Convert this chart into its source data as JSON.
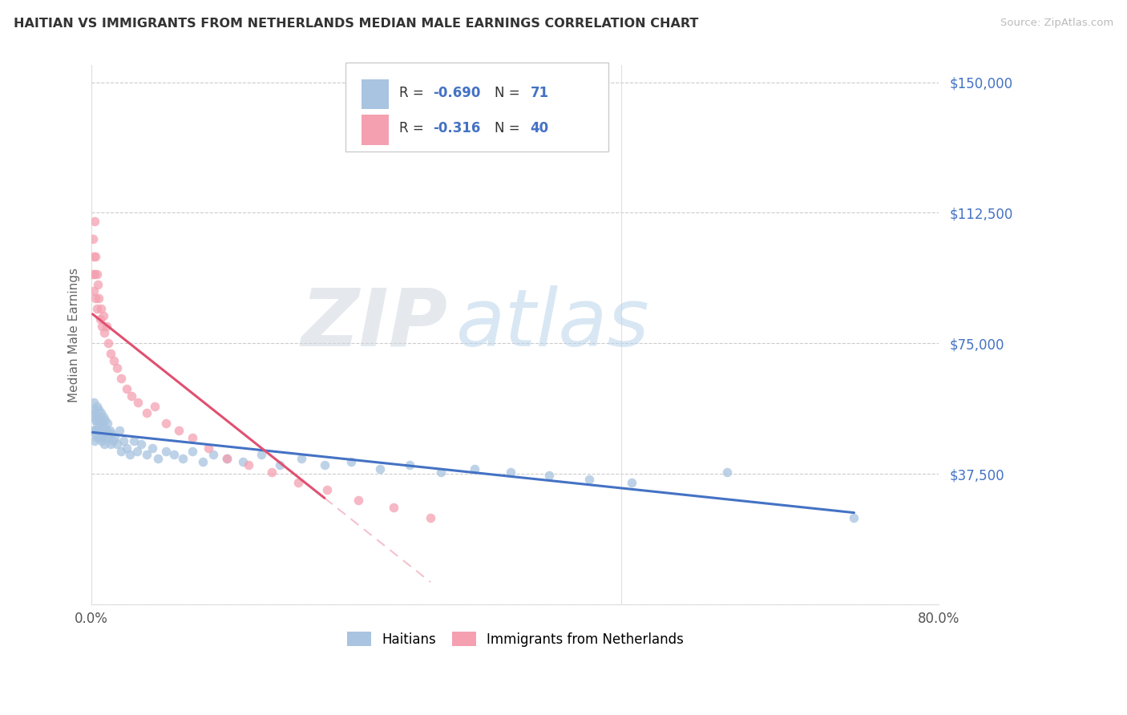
{
  "title": "HAITIAN VS IMMIGRANTS FROM NETHERLANDS MEDIAN MALE EARNINGS CORRELATION CHART",
  "source": "Source: ZipAtlas.com",
  "ylabel": "Median Male Earnings",
  "xlim": [
    0.0,
    0.8
  ],
  "ylim": [
    0,
    155000
  ],
  "yticks": [
    0,
    37500,
    75000,
    112500,
    150000
  ],
  "ytick_labels": [
    "",
    "$37,500",
    "$75,000",
    "$112,500",
    "$150,000"
  ],
  "xticks": [
    0.0,
    0.1,
    0.2,
    0.3,
    0.4,
    0.5,
    0.6,
    0.7,
    0.8
  ],
  "xtick_labels": [
    "0.0%",
    "",
    "",
    "",
    "",
    "",
    "",
    "",
    "80.0%"
  ],
  "legend_labels": [
    "Haitians",
    "Immigrants from Netherlands"
  ],
  "haiti_color": "#a8c4e0",
  "netherlands_color": "#f4a0b0",
  "haiti_R": -0.69,
  "haiti_N": 71,
  "netherlands_R": -0.316,
  "netherlands_N": 40,
  "haiti_line_color": "#4472c4",
  "netherlands_line_color": "#e05070",
  "watermark_zip": "ZIP",
  "watermark_atlas": "atlas",
  "background_color": "#ffffff",
  "grid_color": "#cccccc",
  "axis_color": "#4472c4",
  "haiti_scatter_x": [
    0.001,
    0.001,
    0.002,
    0.002,
    0.003,
    0.003,
    0.003,
    0.004,
    0.004,
    0.005,
    0.005,
    0.005,
    0.006,
    0.006,
    0.007,
    0.007,
    0.008,
    0.008,
    0.009,
    0.009,
    0.01,
    0.01,
    0.011,
    0.011,
    0.012,
    0.012,
    0.013,
    0.013,
    0.014,
    0.015,
    0.016,
    0.017,
    0.018,
    0.019,
    0.02,
    0.022,
    0.024,
    0.026,
    0.028,
    0.03,
    0.033,
    0.036,
    0.04,
    0.043,
    0.047,
    0.052,
    0.057,
    0.063,
    0.07,
    0.078,
    0.086,
    0.095,
    0.105,
    0.115,
    0.128,
    0.143,
    0.16,
    0.178,
    0.198,
    0.22,
    0.245,
    0.272,
    0.3,
    0.33,
    0.362,
    0.396,
    0.432,
    0.47,
    0.51,
    0.6,
    0.72
  ],
  "haiti_scatter_y": [
    56000,
    50000,
    58000,
    54000,
    55000,
    50000,
    47000,
    53000,
    49000,
    57000,
    52000,
    48000,
    54000,
    50000,
    56000,
    51000,
    53000,
    48000,
    55000,
    50000,
    52000,
    47000,
    54000,
    49000,
    51000,
    46000,
    53000,
    48000,
    50000,
    52000,
    48000,
    50000,
    46000,
    49000,
    47000,
    48000,
    46000,
    50000,
    44000,
    47000,
    45000,
    43000,
    47000,
    44000,
    46000,
    43000,
    45000,
    42000,
    44000,
    43000,
    42000,
    44000,
    41000,
    43000,
    42000,
    41000,
    43000,
    40000,
    42000,
    40000,
    41000,
    39000,
    40000,
    38000,
    39000,
    38000,
    37000,
    36000,
    35000,
    38000,
    25000
  ],
  "netherlands_scatter_x": [
    0.001,
    0.001,
    0.002,
    0.002,
    0.003,
    0.003,
    0.004,
    0.004,
    0.005,
    0.005,
    0.006,
    0.007,
    0.008,
    0.009,
    0.01,
    0.011,
    0.012,
    0.014,
    0.016,
    0.018,
    0.021,
    0.024,
    0.028,
    0.033,
    0.038,
    0.044,
    0.052,
    0.06,
    0.07,
    0.082,
    0.095,
    0.11,
    0.128,
    0.148,
    0.17,
    0.195,
    0.222,
    0.252,
    0.285,
    0.32
  ],
  "netherlands_scatter_y": [
    105000,
    95000,
    100000,
    90000,
    110000,
    95000,
    100000,
    88000,
    95000,
    85000,
    92000,
    88000,
    82000,
    85000,
    80000,
    83000,
    78000,
    80000,
    75000,
    72000,
    70000,
    68000,
    65000,
    62000,
    60000,
    58000,
    55000,
    57000,
    52000,
    50000,
    48000,
    45000,
    42000,
    40000,
    38000,
    35000,
    33000,
    30000,
    28000,
    25000
  ]
}
